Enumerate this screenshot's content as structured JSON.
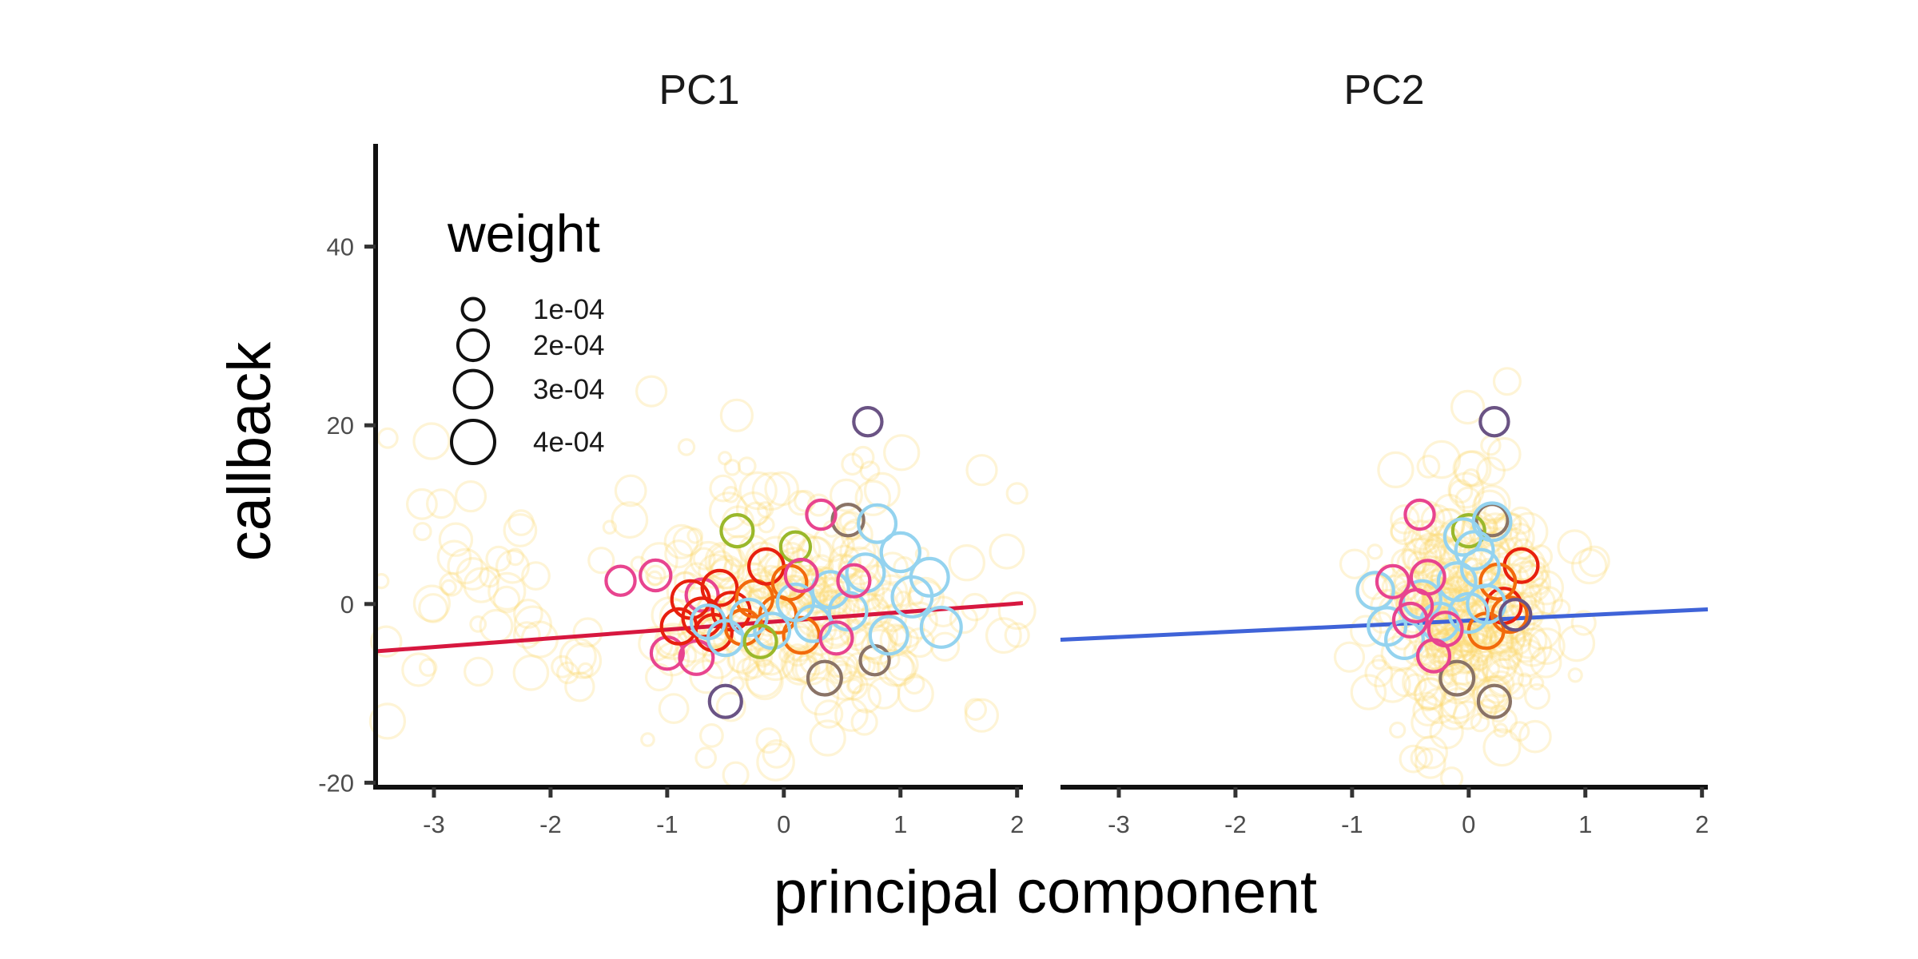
{
  "chart_data": {
    "type": "scatter",
    "xlabel": "principal component",
    "ylabel": "callback",
    "xlim": [
      -3.5,
      2.05
    ],
    "ylim": [
      -20.5,
      51.5
    ],
    "x_ticks": [
      -3,
      -2,
      -1,
      0,
      1,
      2
    ],
    "x_tick_labels": [
      "-3",
      "-2",
      "-1",
      "0",
      "1",
      "2"
    ],
    "y_ticks": [
      -20,
      0,
      20,
      40
    ],
    "y_tick_labels": [
      "-20",
      "0",
      "20",
      "40"
    ],
    "grid": false,
    "legend": {
      "title": "weight",
      "position": "top-left",
      "entries": [
        {
          "label": "1e-04",
          "weight": 0.0001
        },
        {
          "label": "2e-04",
          "weight": 0.0002
        },
        {
          "label": "3e-04",
          "weight": 0.0003
        },
        {
          "label": "4e-04",
          "weight": 0.0004
        }
      ]
    },
    "colors": {
      "background_points": "#fdd66b",
      "red": "#e8200e",
      "orange": "#f26a0c",
      "light_blue": "#94d3ef",
      "pink": "#e8448f",
      "olive": "#9ab82b",
      "purple": "#6a5384",
      "gray_brown": "#8a7366",
      "fit_pc1": "#d7173f",
      "fit_pc2": "#3f63d8"
    },
    "panels": [
      {
        "title": "PC1",
        "fit_line": {
          "x": [
            -3.5,
            2.05
          ],
          "y": [
            -5.3,
            0.1
          ],
          "color": "#d7173f"
        },
        "points": [
          {
            "x": 0.72,
            "y": 20.4,
            "w": 0.00017,
            "c": "#6a5384"
          },
          {
            "x": -0.5,
            "y": -10.9,
            "w": 0.00022,
            "c": "#6a5384"
          },
          {
            "x": -0.4,
            "y": 8.2,
            "w": 0.00022,
            "c": "#9ab82b"
          },
          {
            "x": 0.1,
            "y": 6.4,
            "w": 0.00019,
            "c": "#9ab82b"
          },
          {
            "x": 0.55,
            "y": 9.4,
            "w": 0.00021,
            "c": "#8a7366"
          },
          {
            "x": 0.35,
            "y": -8.3,
            "w": 0.00024,
            "c": "#8a7366"
          },
          {
            "x": 0.78,
            "y": -6.3,
            "w": 0.00018,
            "c": "#8a7366"
          },
          {
            "x": 0.32,
            "y": 10.0,
            "w": 0.00018,
            "c": "#e8448f"
          },
          {
            "x": -1.4,
            "y": 2.6,
            "w": 0.00018,
            "c": "#e8448f"
          },
          {
            "x": -1.1,
            "y": 3.2,
            "w": 0.0002,
            "c": "#e8448f"
          },
          {
            "x": -1.0,
            "y": -5.5,
            "w": 0.00022,
            "c": "#e8448f"
          },
          {
            "x": -0.75,
            "y": -6.0,
            "w": 0.00024,
            "c": "#e8448f"
          },
          {
            "x": -0.7,
            "y": 1.0,
            "w": 0.00022,
            "c": "#e8448f"
          },
          {
            "x": -0.9,
            "y": -2.5,
            "w": 0.00026,
            "c": "#e8200e"
          },
          {
            "x": -0.8,
            "y": 0.5,
            "w": 0.0003,
            "c": "#e8200e"
          },
          {
            "x": -0.7,
            "y": -1.5,
            "w": 0.00032,
            "c": "#e8200e"
          },
          {
            "x": -0.6,
            "y": -3.2,
            "w": 0.00028,
            "c": "#e8200e"
          },
          {
            "x": -0.55,
            "y": 1.8,
            "w": 0.00026,
            "c": "#e8200e"
          },
          {
            "x": -0.45,
            "y": -0.8,
            "w": 0.0003,
            "c": "#e8200e"
          },
          {
            "x": -0.35,
            "y": -2.6,
            "w": 0.00026,
            "c": "#f26a0c"
          },
          {
            "x": -0.25,
            "y": 0.6,
            "w": 0.00028,
            "c": "#f26a0c"
          },
          {
            "x": -0.15,
            "y": 4.2,
            "w": 0.00026,
            "c": "#e8200e"
          },
          {
            "x": -0.05,
            "y": -1.2,
            "w": 0.00028,
            "c": "#f26a0c"
          },
          {
            "x": 0.05,
            "y": 2.4,
            "w": 0.00025,
            "c": "#f26a0c"
          },
          {
            "x": 0.15,
            "y": -3.5,
            "w": 0.00027,
            "c": "#f26a0c"
          },
          {
            "x": -0.65,
            "y": -2.0,
            "w": 0.00024,
            "c": "#94d3ef"
          },
          {
            "x": -0.5,
            "y": -3.8,
            "w": 0.00026,
            "c": "#94d3ef"
          },
          {
            "x": -0.3,
            "y": -1.5,
            "w": 0.00028,
            "c": "#94d3ef"
          },
          {
            "x": -0.1,
            "y": -3.0,
            "w": 0.00026,
            "c": "#94d3ef"
          },
          {
            "x": 0.1,
            "y": 0.2,
            "w": 0.00028,
            "c": "#94d3ef"
          },
          {
            "x": 0.25,
            "y": -2.2,
            "w": 0.00027,
            "c": "#94d3ef"
          },
          {
            "x": 0.4,
            "y": 1.6,
            "w": 0.00028,
            "c": "#94d3ef"
          },
          {
            "x": 0.55,
            "y": -0.8,
            "w": 0.0003,
            "c": "#94d3ef"
          },
          {
            "x": 0.7,
            "y": 3.5,
            "w": 0.0003,
            "c": "#94d3ef"
          },
          {
            "x": 0.8,
            "y": 9.0,
            "w": 0.0003,
            "c": "#94d3ef"
          },
          {
            "x": 0.9,
            "y": -3.5,
            "w": 0.0003,
            "c": "#94d3ef"
          },
          {
            "x": 1.0,
            "y": 5.8,
            "w": 0.00032,
            "c": "#94d3ef"
          },
          {
            "x": 1.1,
            "y": 0.8,
            "w": 0.00034,
            "c": "#94d3ef"
          },
          {
            "x": 1.25,
            "y": 3.0,
            "w": 0.0003,
            "c": "#94d3ef"
          },
          {
            "x": 1.35,
            "y": -2.6,
            "w": 0.00034,
            "c": "#94d3ef"
          },
          {
            "x": 0.6,
            "y": 2.6,
            "w": 0.00022,
            "c": "#e8448f"
          },
          {
            "x": 0.45,
            "y": -3.8,
            "w": 0.00022,
            "c": "#e8448f"
          },
          {
            "x": 0.15,
            "y": 3.2,
            "w": 0.00022,
            "c": "#e8448f"
          },
          {
            "x": -0.2,
            "y": -4.2,
            "w": 0.00022,
            "c": "#9ab82b"
          }
        ]
      },
      {
        "title": "PC2",
        "fit_line": {
          "x": [
            -3.5,
            2.05
          ],
          "y": [
            -4.0,
            -0.6
          ],
          "color": "#3f63d8"
        },
        "points": [
          {
            "x": 0.22,
            "y": 20.4,
            "w": 0.00017,
            "c": "#6a5384"
          },
          {
            "x": 0.22,
            "y": -10.9,
            "w": 0.00022,
            "c": "#8a7366"
          },
          {
            "x": 0.2,
            "y": 9.4,
            "w": 0.00021,
            "c": "#8a7366"
          },
          {
            "x": -0.1,
            "y": -8.3,
            "w": 0.00024,
            "c": "#8a7366"
          },
          {
            "x": 0.0,
            "y": 8.2,
            "w": 0.00022,
            "c": "#9ab82b"
          },
          {
            "x": -0.42,
            "y": 10.0,
            "w": 0.00018,
            "c": "#e8448f"
          },
          {
            "x": 0.45,
            "y": 4.3,
            "w": 0.00024,
            "c": "#e8200e"
          },
          {
            "x": 0.3,
            "y": -0.2,
            "w": 0.00026,
            "c": "#e8200e"
          },
          {
            "x": 0.25,
            "y": 2.5,
            "w": 0.00026,
            "c": "#f26a0c"
          },
          {
            "x": 0.15,
            "y": -3.0,
            "w": 0.00026,
            "c": "#f26a0c"
          },
          {
            "x": 0.35,
            "y": -1.2,
            "w": 0.00026,
            "c": "#f26a0c"
          },
          {
            "x": -0.8,
            "y": 1.5,
            "w": 0.00028,
            "c": "#94d3ef"
          },
          {
            "x": -0.7,
            "y": -2.5,
            "w": 0.0003,
            "c": "#94d3ef"
          },
          {
            "x": -0.55,
            "y": -4.0,
            "w": 0.0003,
            "c": "#94d3ef"
          },
          {
            "x": -0.4,
            "y": 0.5,
            "w": 0.0003,
            "c": "#94d3ef"
          },
          {
            "x": -0.25,
            "y": -2.0,
            "w": 0.0003,
            "c": "#94d3ef"
          },
          {
            "x": -0.1,
            "y": 2.5,
            "w": 0.0003,
            "c": "#94d3ef"
          },
          {
            "x": 0.0,
            "y": -1.0,
            "w": 0.00032,
            "c": "#94d3ef"
          },
          {
            "x": 0.05,
            "y": 6.0,
            "w": 0.0003,
            "c": "#94d3ef"
          },
          {
            "x": 0.1,
            "y": 4.0,
            "w": 0.0003,
            "c": "#94d3ef"
          },
          {
            "x": -0.05,
            "y": 7.5,
            "w": 0.00028,
            "c": "#94d3ef"
          },
          {
            "x": 0.15,
            "y": 0.0,
            "w": 0.0003,
            "c": "#94d3ef"
          },
          {
            "x": 0.2,
            "y": 9.2,
            "w": 0.0003,
            "c": "#94d3ef"
          },
          {
            "x": -0.65,
            "y": 2.5,
            "w": 0.00022,
            "c": "#e8448f"
          },
          {
            "x": -0.5,
            "y": -1.8,
            "w": 0.00024,
            "c": "#e8448f"
          },
          {
            "x": -0.35,
            "y": 3.0,
            "w": 0.00024,
            "c": "#e8448f"
          },
          {
            "x": -0.3,
            "y": -5.8,
            "w": 0.00022,
            "c": "#e8448f"
          },
          {
            "x": -0.2,
            "y": -2.8,
            "w": 0.00024,
            "c": "#e8448f"
          },
          {
            "x": -0.45,
            "y": -0.2,
            "w": 0.00022,
            "c": "#e8448f"
          },
          {
            "x": 0.4,
            "y": -1.2,
            "w": 0.0002,
            "c": "#6a5384"
          }
        ]
      }
    ]
  }
}
